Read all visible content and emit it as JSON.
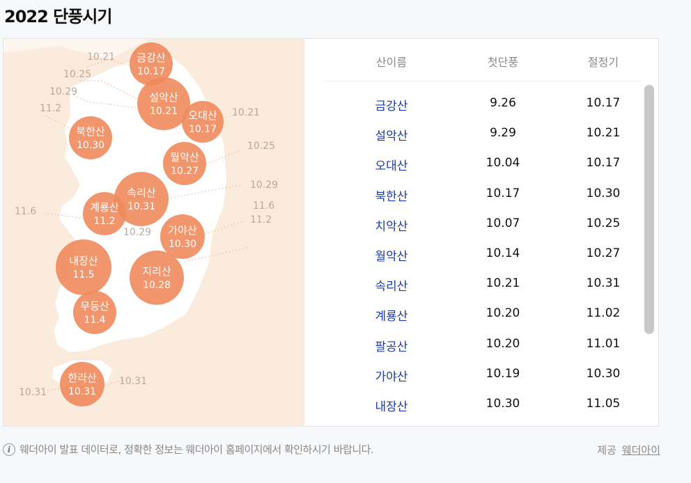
{
  "page": {
    "title": "2022 단풍시기"
  },
  "map": {
    "bubbles": [
      {
        "name": "금강산",
        "date": "10.17"
      },
      {
        "name": "설악산",
        "date": "10.21"
      },
      {
        "name": "오대산",
        "date": "10.17"
      },
      {
        "name": "북한산",
        "date": "10.30"
      },
      {
        "name": "월악산",
        "date": "10.27"
      },
      {
        "name": "속리산",
        "date": "10.31"
      },
      {
        "name": "계룡산",
        "date": "11.2"
      },
      {
        "name": "가야산",
        "date": "10.30"
      },
      {
        "name": "내장산",
        "date": "11.5"
      },
      {
        "name": "지리산",
        "date": "10.28"
      },
      {
        "name": "무등산",
        "date": "11.4"
      },
      {
        "name": "한라산",
        "date": "10.31"
      }
    ],
    "labels": [
      "10.21",
      "10.25",
      "10.29",
      "11.2",
      "10.21",
      "10.25",
      "10.29",
      "11.6",
      "11.2",
      "10.29",
      "11.6",
      "10.31",
      "10.31"
    ]
  },
  "table": {
    "headers": {
      "name": "산이름",
      "first": "첫단풍",
      "peak": "절정기"
    },
    "rows": [
      {
        "name": "금강산",
        "first": "9.26",
        "peak": "10.17"
      },
      {
        "name": "설악산",
        "first": "9.29",
        "peak": "10.21"
      },
      {
        "name": "오대산",
        "first": "10.04",
        "peak": "10.17"
      },
      {
        "name": "북한산",
        "first": "10.17",
        "peak": "10.30"
      },
      {
        "name": "치악산",
        "first": "10.07",
        "peak": "10.25"
      },
      {
        "name": "월악산",
        "first": "10.14",
        "peak": "10.27"
      },
      {
        "name": "속리산",
        "first": "10.21",
        "peak": "10.31"
      },
      {
        "name": "계룡산",
        "first": "10.20",
        "peak": "11.02"
      },
      {
        "name": "팔공산",
        "first": "10.20",
        "peak": "11.01"
      },
      {
        "name": "가야산",
        "first": "10.19",
        "peak": "10.30"
      },
      {
        "name": "내장산",
        "first": "10.30",
        "peak": "11.05"
      }
    ]
  },
  "footer": {
    "note": "웨더아이 발표 데이터로, 정확한 정보는 웨더아이 홈페이지에서 확인하시기 바랍니다.",
    "provider_label": "제공",
    "provider_name": "웨더아이"
  },
  "colors": {
    "bubble": "#ee8a5c",
    "map_bg": "#fbebdd",
    "land": "#ffffff",
    "link": "#1a3aa6",
    "label": "#b9a89a"
  }
}
